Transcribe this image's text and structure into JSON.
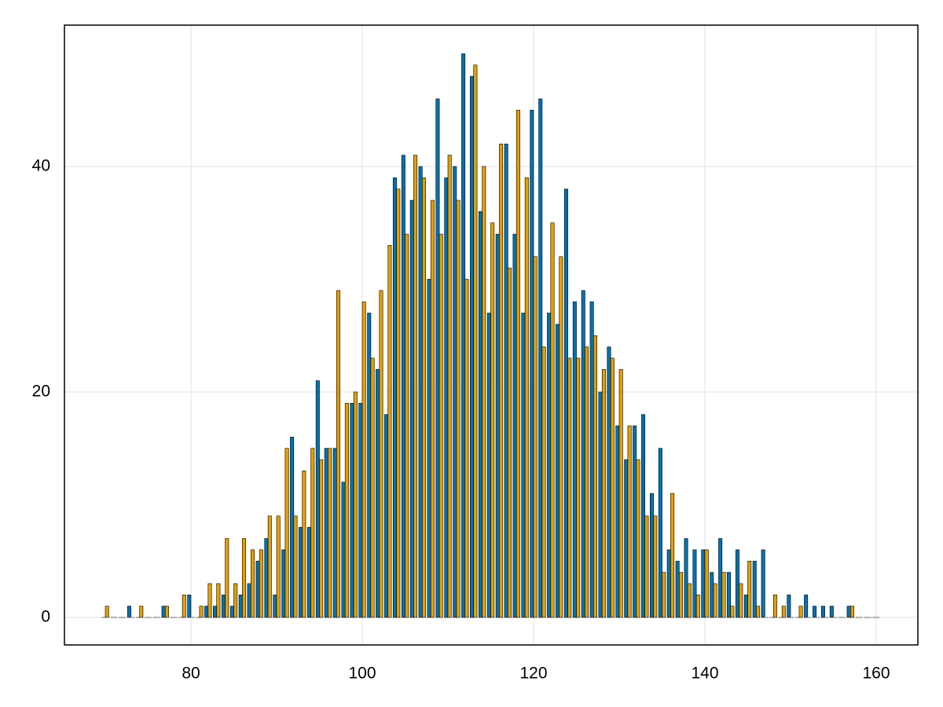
{
  "chart_data": {
    "type": "bar",
    "x": [
      70,
      71,
      72,
      73,
      74,
      75,
      76,
      77,
      78,
      79,
      80,
      81,
      82,
      83,
      84,
      85,
      86,
      87,
      88,
      89,
      90,
      91,
      92,
      93,
      94,
      95,
      96,
      97,
      98,
      99,
      100,
      101,
      102,
      103,
      104,
      105,
      106,
      107,
      108,
      109,
      110,
      111,
      112,
      113,
      114,
      115,
      116,
      117,
      118,
      119,
      120,
      121,
      122,
      123,
      124,
      125,
      126,
      127,
      128,
      129,
      130,
      131,
      132,
      133,
      134,
      135,
      136,
      137,
      138,
      139,
      140,
      141,
      142,
      143,
      144,
      145,
      146,
      147,
      148,
      149,
      150,
      151,
      152,
      153,
      154,
      155,
      156,
      157,
      158,
      159,
      160
    ],
    "series": [
      {
        "color": "#0072b2",
        "values": [
          0,
          0,
          0,
          1,
          0,
          0,
          0,
          1,
          0,
          0,
          2,
          0,
          1,
          1,
          2,
          1,
          2,
          3,
          5,
          7,
          2,
          6,
          16,
          8,
          8,
          21,
          15,
          15,
          12,
          19,
          19,
          27,
          22,
          18,
          39,
          41,
          37,
          40,
          30,
          46,
          39,
          40,
          50,
          48,
          36,
          27,
          34,
          42,
          34,
          27,
          45,
          46,
          27,
          26,
          38,
          28,
          29,
          28,
          20,
          24,
          17,
          14,
          17,
          18,
          11,
          15,
          6,
          5,
          7,
          6,
          6,
          4,
          7,
          4,
          6,
          2,
          5,
          6,
          0,
          0,
          2,
          0,
          2,
          1,
          1,
          1,
          0,
          1,
          0,
          0,
          0
        ]
      },
      {
        "color": "#e69f00",
        "values": [
          1,
          0,
          0,
          0,
          1,
          0,
          0,
          1,
          0,
          2,
          0,
          1,
          3,
          3,
          7,
          3,
          7,
          6,
          6,
          9,
          9,
          15,
          9,
          13,
          15,
          14,
          15,
          29,
          19,
          20,
          28,
          23,
          29,
          33,
          38,
          34,
          41,
          39,
          37,
          34,
          41,
          37,
          30,
          49,
          40,
          35,
          42,
          31,
          45,
          39,
          32,
          24,
          35,
          32,
          23,
          23,
          24,
          25,
          22,
          23,
          22,
          17,
          14,
          9,
          9,
          4,
          11,
          4,
          3,
          2,
          6,
          3,
          4,
          1,
          3,
          5,
          1,
          0,
          2,
          1,
          0,
          1,
          0,
          0,
          0,
          0,
          0,
          1,
          0,
          0,
          0
        ]
      }
    ],
    "xlim": [
      65.23,
      164.86
    ],
    "ylim": [
      -2.44,
      52.54
    ],
    "xticks": [
      80,
      100,
      120,
      140,
      160
    ],
    "yticks": [
      0,
      20,
      40
    ],
    "grid": true
  }
}
